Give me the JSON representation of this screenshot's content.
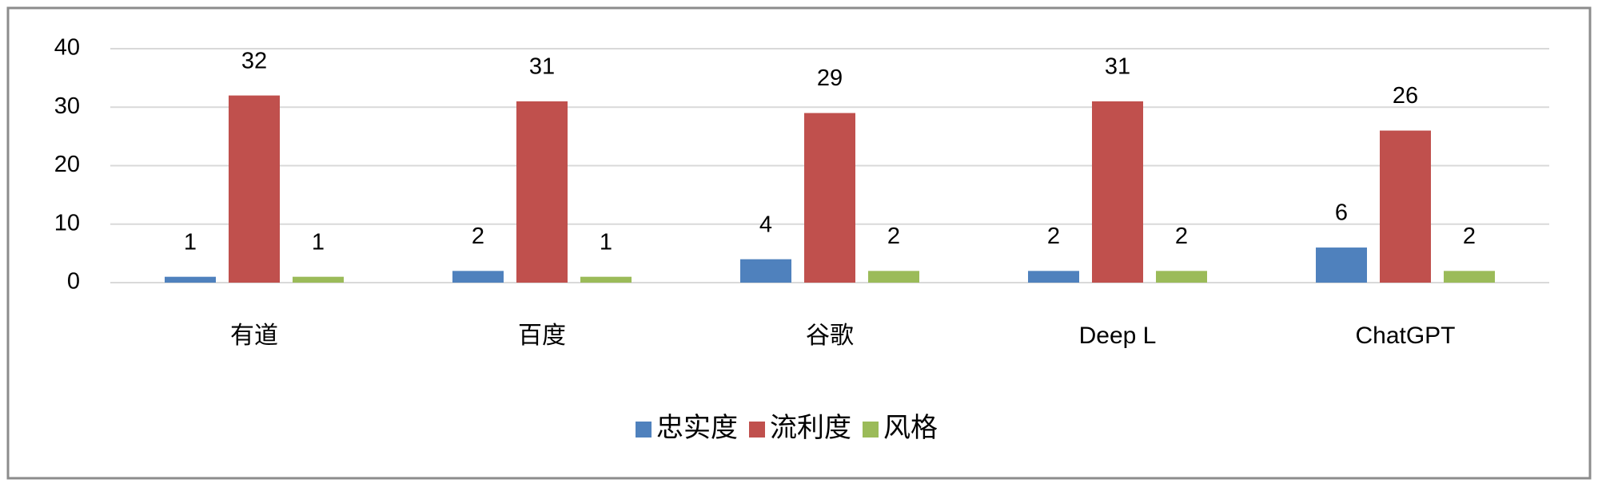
{
  "chart_data": {
    "type": "bar",
    "categories": [
      "有道",
      "百度",
      "谷歌",
      "Deep L",
      "ChatGPT"
    ],
    "series": [
      {
        "name": "忠实度",
        "color": "#4f81bd",
        "values": [
          1,
          2,
          4,
          2,
          6
        ]
      },
      {
        "name": "流利度",
        "color": "#c0504d",
        "values": [
          32,
          31,
          29,
          31,
          26
        ]
      },
      {
        "name": "风格",
        "color": "#9bbb59",
        "values": [
          1,
          1,
          2,
          2,
          2
        ]
      }
    ],
    "ylim": [
      0,
      40
    ],
    "yticks": [
      0,
      10,
      20,
      30,
      40
    ],
    "grid": true,
    "legend": "bottom"
  }
}
